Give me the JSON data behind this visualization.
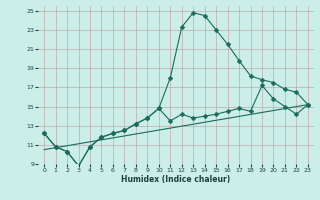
{
  "xlabel": "Humidex (Indice chaleur)",
  "bg_color": "#cceee8",
  "grid_color": "#c0a8a8",
  "line_color": "#1a6b5a",
  "xlim": [
    -0.5,
    23.5
  ],
  "ylim": [
    9,
    25.5
  ],
  "xticks": [
    0,
    1,
    2,
    3,
    4,
    5,
    6,
    7,
    8,
    9,
    10,
    11,
    12,
    13,
    14,
    15,
    16,
    17,
    18,
    19,
    20,
    21,
    22,
    23
  ],
  "yticks": [
    9,
    11,
    13,
    15,
    17,
    19,
    21,
    23,
    25
  ],
  "line1_x": [
    0,
    1,
    2,
    3,
    4,
    5,
    6,
    7,
    8,
    9,
    10,
    11,
    12,
    13,
    14,
    15,
    16,
    17,
    18,
    19,
    20,
    21,
    22,
    23
  ],
  "line1_y": [
    12.2,
    10.8,
    10.3,
    8.8,
    10.8,
    11.8,
    12.2,
    12.5,
    13.2,
    13.8,
    14.8,
    18.0,
    23.3,
    24.8,
    24.5,
    23.0,
    21.5,
    19.8,
    18.2,
    17.8,
    17.5,
    16.8,
    16.5,
    15.2
  ],
  "line2_x": [
    0,
    1,
    2,
    3,
    4,
    5,
    6,
    7,
    8,
    9,
    10,
    11,
    12,
    13,
    14,
    15,
    16,
    17,
    18,
    19,
    20,
    21,
    22,
    23
  ],
  "line2_y": [
    12.2,
    10.8,
    10.3,
    8.8,
    10.8,
    11.8,
    12.2,
    12.5,
    13.2,
    13.8,
    14.8,
    13.5,
    14.2,
    13.8,
    14.0,
    14.2,
    14.5,
    14.8,
    14.5,
    17.2,
    15.8,
    15.0,
    14.2,
    15.2
  ],
  "line3_x": [
    0,
    23
  ],
  "line3_y": [
    10.5,
    15.2
  ],
  "markersize": 2.5
}
